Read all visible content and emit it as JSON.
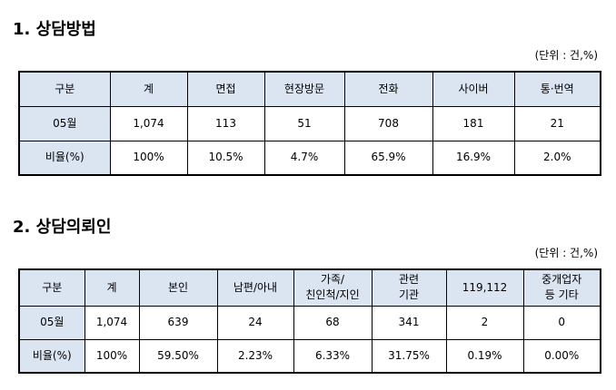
{
  "sections": [
    {
      "title": "1. 상담방법",
      "unit": "(단위 : 건,%)",
      "table": {
        "header": [
          "구분",
          "계",
          "면접",
          "현장방문",
          "전화",
          "사이버",
          "통·번역"
        ],
        "rows": [
          [
            "05월",
            "1,074",
            "113",
            "51",
            "708",
            "181",
            "21"
          ],
          [
            "비율(%)",
            "100%",
            "10.5%",
            "4.7%",
            "65.9%",
            "16.9%",
            "2.0%"
          ]
        ]
      }
    },
    {
      "title": "2. 상담의뢰인",
      "unit": "(단위 : 건,%)",
      "table": {
        "header": [
          "구분",
          "계",
          "본인",
          "남편/아내",
          "가족/\n친인척/지인",
          "관련\n기관",
          "119,112",
          "중개업자\n등 기타"
        ],
        "rows": [
          [
            "05월",
            "1,074",
            "639",
            "24",
            "68",
            "341",
            "2",
            "0"
          ],
          [
            "비율(%)",
            "100%",
            "59.50%",
            "2.23%",
            "6.33%",
            "31.75%",
            "0.19%",
            "0.00%"
          ]
        ]
      }
    }
  ]
}
